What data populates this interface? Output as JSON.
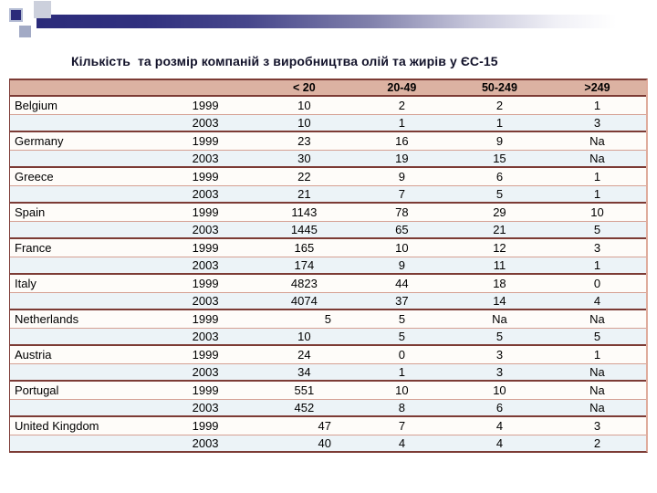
{
  "title": "Кількість  та розмір компаній з виробництва олій та жирів у ЄС-15",
  "colors": {
    "accent_bar_navy": "#2b2b7a",
    "header_band_salmon": "#dcb2a2",
    "group_separator_line": "#7c3b35",
    "inner_separator_line": "#d5a093",
    "alt_row_blue": "#ecf3f7"
  },
  "table": {
    "col_headers": [
      "< 20",
      "20-49",
      "50-249",
      ">249"
    ],
    "rows": [
      {
        "country": "Belgium",
        "year": "1999",
        "values": [
          "10",
          "2",
          "2",
          "1"
        ]
      },
      {
        "country": "",
        "year": "2003",
        "values": [
          "10",
          "1",
          "1",
          "3"
        ]
      },
      {
        "country": "Germany",
        "year": "1999",
        "values": [
          "23",
          "16",
          "9",
          "Na"
        ]
      },
      {
        "country": "",
        "year": "2003",
        "values": [
          "30",
          "19",
          "15",
          "Na"
        ]
      },
      {
        "country": "Greece",
        "year": "1999",
        "values": [
          "22",
          "9",
          "6",
          "1"
        ]
      },
      {
        "country": "",
        "year": "2003",
        "values": [
          "21",
          "7",
          "5",
          "1"
        ]
      },
      {
        "country": "Spain",
        "year": "1999",
        "values": [
          "1143",
          "78",
          "29",
          "10"
        ]
      },
      {
        "country": "",
        "year": "2003",
        "values": [
          "1445",
          "65",
          "21",
          "5"
        ]
      },
      {
        "country": "France",
        "year": "1999",
        "values": [
          "165",
          "10",
          "12",
          "3"
        ]
      },
      {
        "country": "",
        "year": "2003",
        "values": [
          "174",
          "9",
          "11",
          "1"
        ]
      },
      {
        "country": "Italy",
        "year": "1999",
        "values": [
          "4823",
          "44",
          "18",
          "0"
        ]
      },
      {
        "country": "",
        "year": "2003",
        "values": [
          "4074",
          "37",
          "14",
          "4"
        ]
      },
      {
        "country": "Netherlands",
        "year": "1999",
        "values": [
          "5",
          "5",
          "Na",
          "Na"
        ],
        "first_value_right_aligned": true
      },
      {
        "country": "",
        "year": "2003",
        "values": [
          "10",
          "5",
          "5",
          "5"
        ]
      },
      {
        "country": "Austria",
        "year": "1999",
        "values": [
          "24",
          "0",
          "3",
          "1"
        ]
      },
      {
        "country": "",
        "year": "2003",
        "values": [
          "34",
          "1",
          "3",
          "Na"
        ]
      },
      {
        "country": "Portugal",
        "year": "1999",
        "values": [
          "551",
          "10",
          "10",
          "Na"
        ]
      },
      {
        "country": "",
        "year": "2003",
        "values": [
          "452",
          "8",
          "6",
          "Na"
        ]
      },
      {
        "country": "United Kingdom",
        "year": "1999",
        "values": [
          "47",
          "7",
          "4",
          "3"
        ],
        "first_value_right_aligned": true
      },
      {
        "country": "",
        "year": "2003",
        "values": [
          "40",
          "4",
          "4",
          "2"
        ],
        "first_value_right_aligned": true
      }
    ]
  }
}
